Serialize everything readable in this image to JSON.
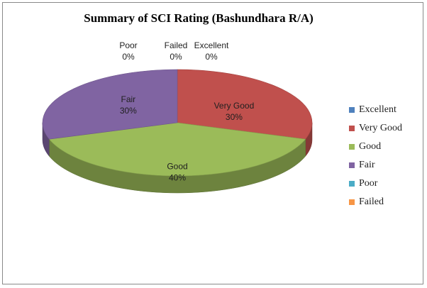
{
  "chart_data": {
    "type": "pie",
    "title": "Summary of SCI Rating (Bashundhara R/A)",
    "categories": [
      "Excellent",
      "Very Good",
      "Good",
      "Fair",
      "Poor",
      "Failed"
    ],
    "values": [
      0,
      30,
      40,
      30,
      0,
      0
    ],
    "value_labels": [
      "0%",
      "30%",
      "40%",
      "30%",
      "0%",
      "0%"
    ],
    "colors": [
      "#4f81bd",
      "#c0504d",
      "#9bbb59",
      "#8064a2",
      "#4bacc6",
      "#f79646"
    ],
    "legend": "right",
    "style": "3d"
  }
}
